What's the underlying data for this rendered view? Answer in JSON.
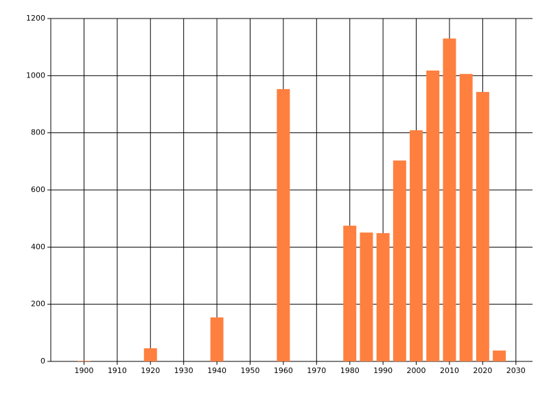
{
  "chart_data": {
    "type": "bar",
    "x": [
      1900,
      1920,
      1940,
      1960,
      1980,
      1985,
      1990,
      1995,
      2000,
      2005,
      2010,
      2015,
      2020,
      2025
    ],
    "values": [
      2,
      46,
      154,
      953,
      475,
      451,
      449,
      703,
      809,
      1018,
      1130,
      1006,
      943,
      38
    ],
    "color": "#ff7f3f",
    "xlim": [
      1890,
      2035
    ],
    "xticks": [
      1900,
      1910,
      1920,
      1930,
      1940,
      1950,
      1960,
      1970,
      1980,
      1990,
      2000,
      2010,
      2020,
      2030
    ],
    "ylim": [
      0,
      1200
    ],
    "yticks": [
      0,
      200,
      400,
      600,
      800,
      1000,
      1200
    ],
    "grid": true
  }
}
